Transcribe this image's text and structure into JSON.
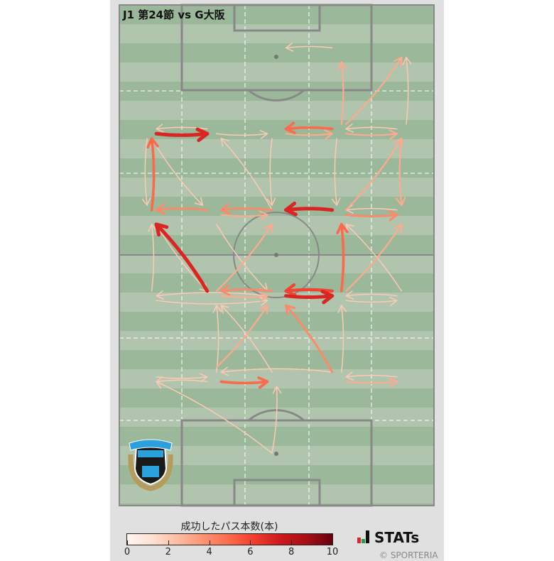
{
  "title": "J1 第24節 vs G大阪",
  "colorbar": {
    "label": "成功したパス本数(本)",
    "ticks": [
      "0",
      "2",
      "4",
      "6",
      "8",
      "10"
    ],
    "range": [
      0,
      10
    ],
    "colormap": "Reds"
  },
  "brand": {
    "name": "STATs",
    "copyright": "© SPORTERIA"
  },
  "team_logo": {
    "text": [
      "FRONTALE",
      "KAWASAKI"
    ]
  },
  "colors": {
    "pitch_dark": "#9bb89a",
    "pitch_light": "#b0c4ae",
    "lines": "#888888"
  },
  "chart_data": {
    "type": "pass_flow_map",
    "units": "pitch meters (x across width 0-68 from left, y along length 0-105 from own goal)",
    "passes": [
      {
        "from": [
          46,
          96
        ],
        "to": [
          36,
          96
        ],
        "count": 2
      },
      {
        "from": [
          48,
          80
        ],
        "to": [
          48,
          93
        ],
        "count": 3
      },
      {
        "from": [
          49,
          80
        ],
        "to": [
          61,
          94
        ],
        "count": 3
      },
      {
        "from": [
          62,
          80
        ],
        "to": [
          62,
          94
        ],
        "count": 2
      },
      {
        "from": [
          8,
          78
        ],
        "to": [
          19,
          78
        ],
        "count": 7
      },
      {
        "from": [
          19,
          79
        ],
        "to": [
          8,
          79
        ],
        "count": 2
      },
      {
        "from": [
          21,
          78
        ],
        "to": [
          32,
          78
        ],
        "count": 2
      },
      {
        "from": [
          46,
          79
        ],
        "to": [
          36,
          79
        ],
        "count": 5
      },
      {
        "from": [
          36,
          78
        ],
        "to": [
          46,
          78
        ],
        "count": 3
      },
      {
        "from": [
          60,
          79
        ],
        "to": [
          49,
          79
        ],
        "count": 2
      },
      {
        "from": [
          49,
          78
        ],
        "to": [
          60,
          78
        ],
        "count": 3
      },
      {
        "from": [
          49,
          62
        ],
        "to": [
          61,
          77
        ],
        "count": 3
      },
      {
        "from": [
          61,
          77
        ],
        "to": [
          61,
          63
        ],
        "count": 3
      },
      {
        "from": [
          47,
          77
        ],
        "to": [
          47,
          63
        ],
        "count": 2
      },
      {
        "from": [
          33,
          77
        ],
        "to": [
          33,
          63
        ],
        "count": 2
      },
      {
        "from": [
          33,
          62
        ],
        "to": [
          22,
          77
        ],
        "count": 2
      },
      {
        "from": [
          7,
          77
        ],
        "to": [
          18,
          63
        ],
        "count": 2
      },
      {
        "from": [
          7,
          62
        ],
        "to": [
          7,
          77
        ],
        "count": 5
      },
      {
        "from": [
          6,
          77
        ],
        "to": [
          6,
          63
        ],
        "count": 2
      },
      {
        "from": [
          19,
          62
        ],
        "to": [
          8,
          62
        ],
        "count": 4
      },
      {
        "from": [
          33,
          62
        ],
        "to": [
          22,
          62
        ],
        "count": 4
      },
      {
        "from": [
          22,
          61
        ],
        "to": [
          32,
          61
        ],
        "count": 3
      },
      {
        "from": [
          46,
          62
        ],
        "to": [
          36,
          62
        ],
        "count": 7
      },
      {
        "from": [
          49,
          61
        ],
        "to": [
          60,
          61
        ],
        "count": 4
      },
      {
        "from": [
          60,
          62
        ],
        "to": [
          49,
          62
        ],
        "count": 2
      },
      {
        "from": [
          49,
          45
        ],
        "to": [
          61,
          59
        ],
        "count": 3
      },
      {
        "from": [
          61,
          45
        ],
        "to": [
          49,
          59
        ],
        "count": 2
      },
      {
        "from": [
          48,
          45
        ],
        "to": [
          48,
          59
        ],
        "count": 5
      },
      {
        "from": [
          19,
          45
        ],
        "to": [
          8,
          59
        ],
        "count": 7
      },
      {
        "from": [
          7,
          45
        ],
        "to": [
          7,
          59
        ],
        "count": 2
      },
      {
        "from": [
          21,
          45
        ],
        "to": [
          33,
          59
        ],
        "count": 3
      },
      {
        "from": [
          21,
          59
        ],
        "to": [
          32,
          45
        ],
        "count": 2
      },
      {
        "from": [
          8,
          59
        ],
        "to": [
          19,
          45
        ],
        "count": 2
      },
      {
        "from": [
          32,
          44
        ],
        "to": [
          8,
          44
        ],
        "count": 2
      },
      {
        "from": [
          8,
          43
        ],
        "to": [
          32,
          43
        ],
        "count": 2
      },
      {
        "from": [
          33,
          45
        ],
        "to": [
          22,
          45
        ],
        "count": 4
      },
      {
        "from": [
          22,
          44
        ],
        "to": [
          32,
          44
        ],
        "count": 3
      },
      {
        "from": [
          46,
          45
        ],
        "to": [
          36,
          45
        ],
        "count": 6
      },
      {
        "from": [
          36,
          44
        ],
        "to": [
          46,
          44
        ],
        "count": 7
      },
      {
        "from": [
          60,
          44
        ],
        "to": [
          49,
          44
        ],
        "count": 2
      },
      {
        "from": [
          49,
          43
        ],
        "to": [
          60,
          43
        ],
        "count": 2
      },
      {
        "from": [
          21,
          28
        ],
        "to": [
          21,
          42
        ],
        "count": 2
      },
      {
        "from": [
          21,
          29
        ],
        "to": [
          32,
          42
        ],
        "count": 3
      },
      {
        "from": [
          33,
          28
        ],
        "to": [
          22,
          42
        ],
        "count": 2
      },
      {
        "from": [
          46,
          28
        ],
        "to": [
          36,
          42
        ],
        "count": 4
      },
      {
        "from": [
          48,
          28
        ],
        "to": [
          48,
          42
        ],
        "count": 2
      },
      {
        "from": [
          8,
          27
        ],
        "to": [
          19,
          27
        ],
        "count": 2
      },
      {
        "from": [
          19,
          26
        ],
        "to": [
          8,
          26
        ],
        "count": 2
      },
      {
        "from": [
          22,
          26
        ],
        "to": [
          32,
          26
        ],
        "count": 5
      },
      {
        "from": [
          46,
          28
        ],
        "to": [
          22,
          28
        ],
        "count": 2
      },
      {
        "from": [
          60,
          27
        ],
        "to": [
          49,
          27
        ],
        "count": 2
      },
      {
        "from": [
          49,
          26
        ],
        "to": [
          60,
          26
        ],
        "count": 3
      },
      {
        "from": [
          33,
          11
        ],
        "to": [
          34,
          25
        ],
        "count": 2
      },
      {
        "from": [
          33,
          11
        ],
        "to": [
          8,
          26
        ],
        "count": 2
      }
    ]
  }
}
